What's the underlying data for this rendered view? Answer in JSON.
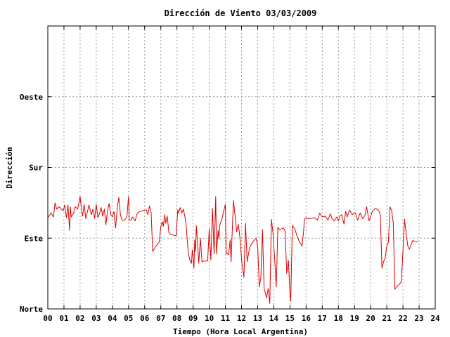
{
  "chart_data": {
    "type": "line",
    "title": "Dirección de Viento 03/03/2009",
    "xlabel": "Tiempo (Hora Local Argentina)",
    "ylabel": "Dirección",
    "xlim": [
      0,
      24
    ],
    "ylim": [
      0,
      360
    ],
    "x_ticks": [
      "00",
      "01",
      "02",
      "03",
      "04",
      "05",
      "06",
      "07",
      "08",
      "09",
      "10",
      "11",
      "12",
      "13",
      "14",
      "15",
      "16",
      "17",
      "18",
      "19",
      "20",
      "21",
      "22",
      "23",
      "24"
    ],
    "y_ticks": [
      {
        "value": 0,
        "label": "Norte"
      },
      {
        "value": 90,
        "label": "Este"
      },
      {
        "value": 180,
        "label": "Sur"
      },
      {
        "value": 270,
        "label": "Oeste"
      }
    ],
    "grid": true,
    "line_color": "#dd0000",
    "series": [
      {
        "values": [
          [
            0.0,
            116
          ],
          [
            0.2,
            122
          ],
          [
            0.35,
            117
          ],
          [
            0.45,
            135
          ],
          [
            0.55,
            127
          ],
          [
            0.7,
            130
          ],
          [
            0.8,
            128
          ],
          [
            0.95,
            125
          ],
          [
            1.05,
            132
          ],
          [
            1.15,
            116
          ],
          [
            1.25,
            132
          ],
          [
            1.35,
            100
          ],
          [
            1.4,
            130
          ],
          [
            1.45,
            117
          ],
          [
            1.6,
            122
          ],
          [
            1.7,
            130
          ],
          [
            1.85,
            127
          ],
          [
            2.0,
            143
          ],
          [
            2.08,
            128
          ],
          [
            2.15,
            118
          ],
          [
            2.25,
            133
          ],
          [
            2.35,
            115
          ],
          [
            2.45,
            123
          ],
          [
            2.55,
            132
          ],
          [
            2.7,
            120
          ],
          [
            2.8,
            127
          ],
          [
            2.9,
            115
          ],
          [
            3.0,
            133
          ],
          [
            3.1,
            116
          ],
          [
            3.2,
            121
          ],
          [
            3.3,
            129
          ],
          [
            3.4,
            118
          ],
          [
            3.5,
            127
          ],
          [
            3.6,
            107
          ],
          [
            3.7,
            125
          ],
          [
            3.8,
            134
          ],
          [
            3.9,
            120
          ],
          [
            4.0,
            117
          ],
          [
            4.1,
            124
          ],
          [
            4.2,
            103
          ],
          [
            4.3,
            128
          ],
          [
            4.4,
            142
          ],
          [
            4.5,
            120
          ],
          [
            4.6,
            113
          ],
          [
            4.75,
            113
          ],
          [
            4.9,
            117
          ],
          [
            5.0,
            143
          ],
          [
            5.05,
            113
          ],
          [
            5.15,
            113
          ],
          [
            5.25,
            117
          ],
          [
            5.4,
            112
          ],
          [
            5.55,
            122
          ],
          [
            5.7,
            124
          ],
          [
            5.9,
            125
          ],
          [
            6.1,
            126
          ],
          [
            6.2,
            120
          ],
          [
            6.3,
            131
          ],
          [
            6.4,
            123
          ],
          [
            6.5,
            73
          ],
          [
            6.7,
            80
          ],
          [
            6.9,
            85
          ],
          [
            7.0,
            105
          ],
          [
            7.1,
            111
          ],
          [
            7.15,
            105
          ],
          [
            7.25,
            120
          ],
          [
            7.3,
            109
          ],
          [
            7.4,
            118
          ],
          [
            7.5,
            97
          ],
          [
            7.6,
            95
          ],
          [
            7.75,
            94
          ],
          [
            7.95,
            93
          ],
          [
            8.05,
            126
          ],
          [
            8.1,
            122
          ],
          [
            8.2,
            129
          ],
          [
            8.3,
            122
          ],
          [
            8.4,
            127
          ],
          [
            8.55,
            111
          ],
          [
            8.7,
            72
          ],
          [
            8.8,
            62
          ],
          [
            8.9,
            58
          ],
          [
            8.95,
            75
          ],
          [
            9.05,
            52
          ],
          [
            9.1,
            88
          ],
          [
            9.15,
            73
          ],
          [
            9.2,
            106
          ],
          [
            9.3,
            77
          ],
          [
            9.35,
            58
          ],
          [
            9.45,
            90
          ],
          [
            9.55,
            60
          ],
          [
            9.7,
            61
          ],
          [
            9.9,
            61
          ],
          [
            10.0,
            102
          ],
          [
            10.1,
            62
          ],
          [
            10.2,
            128
          ],
          [
            10.3,
            70
          ],
          [
            10.4,
            143
          ],
          [
            10.45,
            70
          ],
          [
            10.55,
            100
          ],
          [
            10.6,
            89
          ],
          [
            10.65,
            106
          ],
          [
            10.8,
            116
          ],
          [
            11.0,
            133
          ],
          [
            11.05,
            70
          ],
          [
            11.1,
            71
          ],
          [
            11.2,
            69
          ],
          [
            11.3,
            88
          ],
          [
            11.35,
            60
          ],
          [
            11.5,
            138
          ],
          [
            11.6,
            119
          ],
          [
            11.7,
            98
          ],
          [
            11.8,
            108
          ],
          [
            11.9,
            91
          ],
          [
            12.0,
            64
          ],
          [
            12.05,
            55
          ],
          [
            12.15,
            40
          ],
          [
            12.25,
            109
          ],
          [
            12.35,
            60
          ],
          [
            12.45,
            72
          ],
          [
            12.55,
            80
          ],
          [
            12.7,
            85
          ],
          [
            12.8,
            88
          ],
          [
            12.9,
            90
          ],
          [
            13.0,
            79
          ],
          [
            13.1,
            28
          ],
          [
            13.2,
            40
          ],
          [
            13.3,
            101
          ],
          [
            13.4,
            26
          ],
          [
            13.55,
            14
          ],
          [
            13.65,
            26
          ],
          [
            13.75,
            7
          ],
          [
            13.85,
            114
          ],
          [
            13.95,
            96
          ],
          [
            14.05,
            64
          ],
          [
            14.15,
            28
          ],
          [
            14.25,
            104
          ],
          [
            14.35,
            101
          ],
          [
            14.5,
            102
          ],
          [
            14.6,
            103
          ],
          [
            14.7,
            99
          ],
          [
            14.8,
            45
          ],
          [
            14.9,
            62
          ],
          [
            15.0,
            20
          ],
          [
            15.05,
            10
          ],
          [
            15.15,
            106
          ],
          [
            15.3,
            102
          ],
          [
            15.45,
            92
          ],
          [
            15.6,
            85
          ],
          [
            15.75,
            80
          ],
          [
            15.85,
            100
          ],
          [
            15.9,
            114
          ],
          [
            16.0,
            116
          ],
          [
            16.1,
            115
          ],
          [
            16.3,
            115
          ],
          [
            16.5,
            116
          ],
          [
            16.7,
            113
          ],
          [
            16.85,
            122
          ],
          [
            17.0,
            117
          ],
          [
            17.2,
            118
          ],
          [
            17.35,
            113
          ],
          [
            17.5,
            121
          ],
          [
            17.6,
            115
          ],
          [
            17.75,
            112
          ],
          [
            17.9,
            117
          ],
          [
            18.0,
            112
          ],
          [
            18.1,
            118
          ],
          [
            18.2,
            120
          ],
          [
            18.35,
            108
          ],
          [
            18.45,
            124
          ],
          [
            18.55,
            117
          ],
          [
            18.7,
            126
          ],
          [
            18.85,
            120
          ],
          [
            19.05,
            122
          ],
          [
            19.2,
            113
          ],
          [
            19.35,
            122
          ],
          [
            19.5,
            115
          ],
          [
            19.65,
            119
          ],
          [
            19.75,
            130
          ],
          [
            19.9,
            112
          ],
          [
            20.1,
            124
          ],
          [
            20.3,
            128
          ],
          [
            20.5,
            125
          ],
          [
            20.6,
            120
          ],
          [
            20.7,
            52
          ],
          [
            20.8,
            60
          ],
          [
            20.9,
            65
          ],
          [
            21.0,
            80
          ],
          [
            21.1,
            85
          ],
          [
            21.2,
            130
          ],
          [
            21.3,
            125
          ],
          [
            21.4,
            110
          ],
          [
            21.5,
            25
          ],
          [
            21.6,
            28
          ],
          [
            21.7,
            30
          ],
          [
            21.8,
            32
          ],
          [
            21.9,
            35
          ],
          [
            22.1,
            114
          ],
          [
            22.2,
            95
          ],
          [
            22.3,
            80
          ],
          [
            22.4,
            76
          ],
          [
            22.6,
            87
          ],
          [
            22.75,
            86
          ],
          [
            22.95,
            85
          ]
        ]
      }
    ]
  }
}
